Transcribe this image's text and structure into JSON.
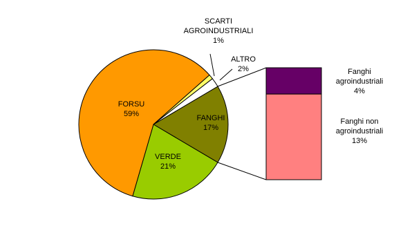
{
  "chart_data": {
    "type": "pie",
    "categories": [
      "FANGHI",
      "VERDE",
      "FORSU",
      "SCARTI AGROINDUSTRIALI",
      "ALTRO"
    ],
    "values": [
      17,
      21,
      59,
      1,
      2
    ],
    "value_labels": [
      "17%",
      "21%",
      "59%",
      "1%",
      "2%"
    ],
    "colors": [
      "#808000",
      "#99cc00",
      "#ff9900",
      "#ffff66",
      "#ffffff"
    ],
    "bar": {
      "categories": [
        "Fanghi agroindustriali",
        "Fanghi non agroindustriali"
      ],
      "values": [
        4,
        13
      ],
      "value_labels": [
        "4%",
        "13%"
      ],
      "colors": [
        "#660066",
        "#ff8080"
      ]
    }
  }
}
